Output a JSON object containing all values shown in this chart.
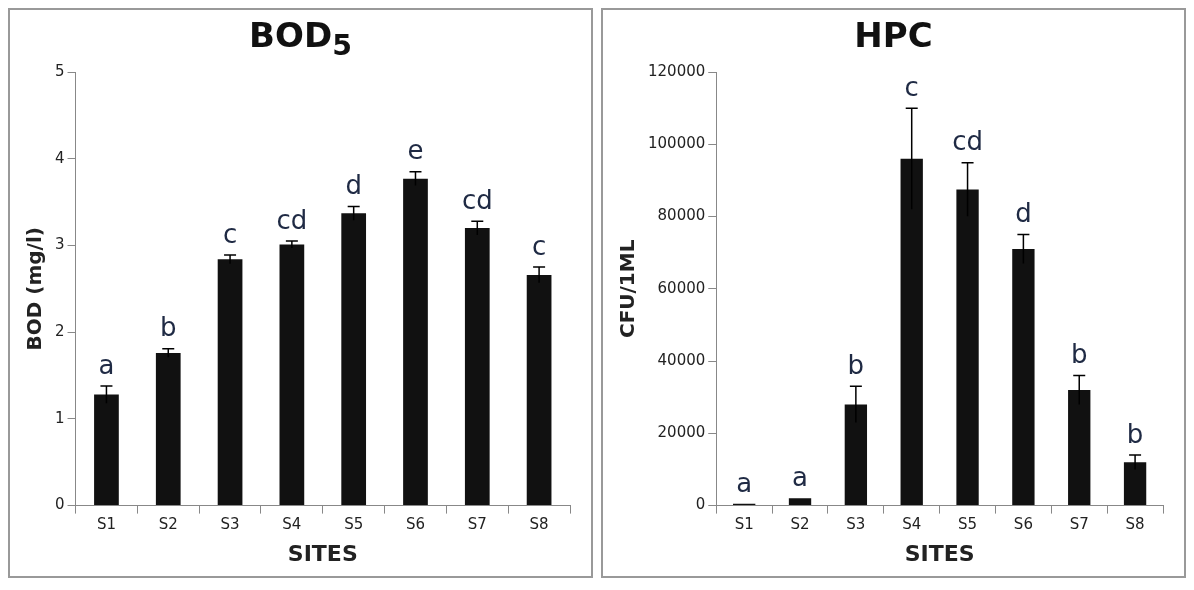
{
  "chart_data": [
    {
      "type": "bar",
      "title": "BOD$_{5}$",
      "xlabel": "SITES",
      "ylabel": "BOD (mg/l)",
      "categories": [
        "S1",
        "S2",
        "S3",
        "S4",
        "S5",
        "S6",
        "S7",
        "S8"
      ],
      "values": [
        1.28,
        1.76,
        2.84,
        3.01,
        3.37,
        3.77,
        3.2,
        2.66
      ],
      "errors": [
        0.1,
        0.05,
        0.05,
        0.04,
        0.08,
        0.08,
        0.08,
        0.09
      ],
      "color": "#111111",
      "ylim": [
        0,
        5
      ],
      "yticks": [
        0,
        1,
        2,
        3,
        4,
        5
      ],
      "annotations": [
        {
          "text": "a",
          "x": "S1",
          "y": 1.38
        },
        {
          "text": "b",
          "x": "S2",
          "y": 1.81
        },
        {
          "text": "c",
          "x": "S3",
          "y": 2.89
        },
        {
          "text": "cd",
          "x": "S4",
          "y": 3.05
        },
        {
          "text": "d",
          "x": "S5",
          "y": 3.45
        },
        {
          "text": "e",
          "x": "S6",
          "y": 3.85
        },
        {
          "text": "cd",
          "x": "S7",
          "y": 3.28
        },
        {
          "text": "c",
          "x": "S8",
          "y": 2.75
        }
      ]
    },
    {
      "type": "bar",
      "title": "HPC",
      "xlabel": "SITES",
      "ylabel": "CFU/1ML",
      "categories": [
        "S1",
        "S2",
        "S3",
        "S4",
        "S5",
        "S6",
        "S7",
        "S8"
      ],
      "values": [
        500,
        2000,
        28000,
        96000,
        87500,
        71000,
        32000,
        12000
      ],
      "errors": [
        null,
        null,
        5000,
        14000,
        7400,
        4000,
        4000,
        2000
      ],
      "color": "#111111",
      "ylim": [
        0,
        120000
      ],
      "yticks": [
        0,
        20000,
        40000,
        60000,
        80000,
        100000,
        120000
      ],
      "annotations": [
        {
          "text": "a",
          "x": "S1",
          "y": 500
        },
        {
          "text": "a",
          "x": "S2",
          "y": 2000
        },
        {
          "text": "b",
          "x": "S3",
          "y": 33000
        },
        {
          "text": "c",
          "x": "S4",
          "y": 110000
        },
        {
          "text": "cd",
          "x": "S5",
          "y": 94900
        },
        {
          "text": "d",
          "x": "S6",
          "y": 75000
        },
        {
          "text": "b",
          "x": "S7",
          "y": 36000
        },
        {
          "text": "b",
          "x": "S8",
          "y": 14000
        }
      ]
    }
  ]
}
